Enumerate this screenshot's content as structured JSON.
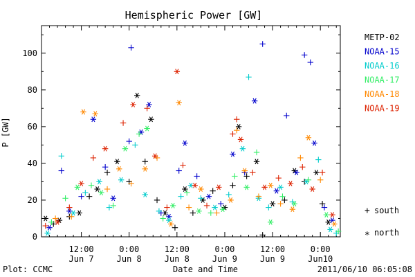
{
  "chart_data": {
    "type": "scatter",
    "title": "Hemispheric Power [GW]",
    "xlabel": "Date and Time",
    "ylabel": "P [GW]",
    "xlim": [
      "2011-06-07T02:00",
      "2011-06-10T05:00"
    ],
    "ylim": [
      0,
      115
    ],
    "yticks": [
      0,
      20,
      40,
      60,
      80,
      100
    ],
    "xtick_labels": [
      {
        "time": "12:00",
        "date": "Jun 7",
        "x": "2011-06-07T12:00"
      },
      {
        "time": "0:00",
        "date": "Jun 8",
        "x": "2011-06-08T00:00"
      },
      {
        "time": "12:00",
        "date": "Jun 8",
        "x": "2011-06-08T12:00"
      },
      {
        "time": "0:00",
        "date": "Jun 9",
        "x": "2011-06-09T00:00"
      },
      {
        "time": "12:00",
        "date": "Jun 9",
        "x": "2011-06-09T12:00"
      },
      {
        "time": "0:00",
        "date": "Jun10",
        "x": "2011-06-10T00:00"
      }
    ],
    "marker_legend": [
      {
        "symbol": "+",
        "label": "south"
      },
      {
        "symbol": "*",
        "label": "north"
      }
    ],
    "grid": false,
    "series": [
      {
        "name": "METP-02",
        "color": "#000000",
        "points": [
          [
            "2011-06-07T03:00",
            10,
            "*"
          ],
          [
            "2011-06-07T05:00",
            7,
            "+"
          ],
          [
            "2011-06-07T06:30",
            9,
            "*"
          ],
          [
            "2011-06-07T09:00",
            11,
            "+"
          ],
          [
            "2011-06-07T11:30",
            13,
            "*"
          ],
          [
            "2011-06-07T14:00",
            22,
            "+"
          ],
          [
            "2011-06-07T16:00",
            26,
            "*"
          ],
          [
            "2011-06-07T18:30",
            35,
            "+"
          ],
          [
            "2011-06-07T21:00",
            41,
            "*"
          ],
          [
            "2011-06-08T00:00",
            30,
            "+"
          ],
          [
            "2011-06-08T02:00",
            77,
            "*"
          ],
          [
            "2011-06-08T04:00",
            41,
            "+"
          ],
          [
            "2011-06-08T05:30",
            64,
            "*"
          ],
          [
            "2011-06-08T07:00",
            20,
            "+"
          ],
          [
            "2011-06-08T09:00",
            13,
            "*"
          ],
          [
            "2011-06-08T11:30",
            5,
            "+"
          ],
          [
            "2011-06-08T14:00",
            26,
            "*"
          ],
          [
            "2011-06-08T16:00",
            13,
            "+"
          ],
          [
            "2011-06-08T18:30",
            20,
            "*"
          ],
          [
            "2011-06-08T21:00",
            25,
            "+"
          ],
          [
            "2011-06-09T00:00",
            16,
            "*"
          ],
          [
            "2011-06-09T02:00",
            28,
            "+"
          ],
          [
            "2011-06-09T03:30",
            60,
            "*"
          ],
          [
            "2011-06-09T05:30",
            33,
            "+"
          ],
          [
            "2011-06-09T08:00",
            41,
            "*"
          ],
          [
            "2011-06-09T09:30",
            1,
            "+"
          ],
          [
            "2011-06-09T12:00",
            18,
            "*"
          ],
          [
            "2011-06-09T15:00",
            20,
            "+"
          ],
          [
            "2011-06-09T17:30",
            36,
            "*"
          ],
          [
            "2011-06-09T20:00",
            30,
            "+"
          ],
          [
            "2011-06-09T23:00",
            35,
            "*"
          ],
          [
            "2011-06-10T00:30",
            18,
            "+"
          ],
          [
            "2011-06-10T02:00",
            8,
            "*"
          ]
        ]
      },
      {
        "name": "NOAA-15",
        "color": "#0000cc",
        "points": [
          [
            "2011-06-07T04:00",
            5,
            "*"
          ],
          [
            "2011-06-07T07:00",
            36,
            "+"
          ],
          [
            "2011-06-07T09:00",
            14,
            "*"
          ],
          [
            "2011-06-07T12:00",
            22,
            "+"
          ],
          [
            "2011-06-07T15:00",
            64,
            "*"
          ],
          [
            "2011-06-07T18:00",
            38,
            "+"
          ],
          [
            "2011-06-07T20:00",
            21,
            "*"
          ],
          [
            "2011-06-08T00:00",
            52,
            "+"
          ],
          [
            "2011-06-08T00:30",
            103,
            "+"
          ],
          [
            "2011-06-08T03:00",
            57,
            "*"
          ],
          [
            "2011-06-08T05:00",
            72,
            "*"
          ],
          [
            "2011-06-08T08:00",
            13,
            "+"
          ],
          [
            "2011-06-08T10:00",
            11,
            "*"
          ],
          [
            "2011-06-08T12:30",
            36,
            "+"
          ],
          [
            "2011-06-08T14:00",
            51,
            "*"
          ],
          [
            "2011-06-08T17:00",
            33,
            "+"
          ],
          [
            "2011-06-08T20:00",
            22,
            "*"
          ],
          [
            "2011-06-08T23:00",
            18,
            "+"
          ],
          [
            "2011-06-09T02:00",
            45,
            "*"
          ],
          [
            "2011-06-09T05:00",
            35,
            "+"
          ],
          [
            "2011-06-09T07:30",
            74,
            "*"
          ],
          [
            "2011-06-09T09:30",
            105,
            "+"
          ],
          [
            "2011-06-09T13:00",
            25,
            "*"
          ],
          [
            "2011-06-09T15:30",
            66,
            "+"
          ],
          [
            "2011-06-09T18:00",
            35,
            "*"
          ],
          [
            "2011-06-09T20:00",
            99,
            "+"
          ],
          [
            "2011-06-09T21:30",
            95,
            "+"
          ],
          [
            "2011-06-09T22:30",
            51,
            "*"
          ],
          [
            "2011-06-10T01:00",
            16,
            "+"
          ],
          [
            "2011-06-10T03:00",
            9,
            "*"
          ]
        ]
      },
      {
        "name": "NOAA-16",
        "color": "#00cccc",
        "points": [
          [
            "2011-06-07T03:30",
            2,
            "*"
          ],
          [
            "2011-06-07T07:00",
            44,
            "+"
          ],
          [
            "2011-06-07T10:00",
            13,
            "*"
          ],
          [
            "2011-06-07T13:00",
            24,
            "+"
          ],
          [
            "2011-06-07T16:30",
            30,
            "*"
          ],
          [
            "2011-06-07T19:00",
            16,
            "+"
          ],
          [
            "2011-06-07T22:00",
            31,
            "*"
          ],
          [
            "2011-06-08T01:30",
            50,
            "+"
          ],
          [
            "2011-06-08T04:00",
            23,
            "*"
          ],
          [
            "2011-06-08T07:30",
            14,
            "+"
          ],
          [
            "2011-06-08T10:00",
            9,
            "*"
          ],
          [
            "2011-06-08T13:00",
            22,
            "+"
          ],
          [
            "2011-06-08T15:30",
            28,
            "*"
          ],
          [
            "2011-06-08T18:00",
            21,
            "+"
          ],
          [
            "2011-06-08T21:30",
            16,
            "*"
          ],
          [
            "2011-06-09T01:00",
            23,
            "+"
          ],
          [
            "2011-06-09T04:30",
            48,
            "*"
          ],
          [
            "2011-06-09T06:00",
            87,
            "+"
          ],
          [
            "2011-06-09T08:30",
            21,
            "*"
          ],
          [
            "2011-06-09T11:00",
            16,
            "+"
          ],
          [
            "2011-06-09T14:00",
            27,
            "*"
          ],
          [
            "2011-06-09T17:00",
            19,
            "+"
          ],
          [
            "2011-06-09T20:30",
            30,
            "*"
          ],
          [
            "2011-06-09T23:30",
            42,
            "+"
          ],
          [
            "2011-06-10T02:30",
            4,
            "*"
          ],
          [
            "2011-06-10T04:00",
            2,
            "+"
          ]
        ]
      },
      {
        "name": "NOAA-17",
        "color": "#33ee66",
        "points": [
          [
            "2011-06-07T04:30",
            8,
            "+"
          ],
          [
            "2011-06-07T08:00",
            21,
            "+"
          ],
          [
            "2011-06-07T11:00",
            27,
            "*"
          ],
          [
            "2011-06-07T14:30",
            28,
            "+"
          ],
          [
            "2011-06-07T17:00",
            24,
            "*"
          ],
          [
            "2011-06-07T20:00",
            17,
            "+"
          ],
          [
            "2011-06-07T23:00",
            48,
            "*"
          ],
          [
            "2011-06-08T02:30",
            56,
            "+"
          ],
          [
            "2011-06-08T04:30",
            59,
            "*"
          ],
          [
            "2011-06-08T08:30",
            10,
            "+"
          ],
          [
            "2011-06-08T11:00",
            17,
            "*"
          ],
          [
            "2011-06-08T14:30",
            24,
            "+"
          ],
          [
            "2011-06-08T17:30",
            14,
            "*"
          ],
          [
            "2011-06-08T20:30",
            13,
            "+"
          ],
          [
            "2011-06-08T23:30",
            15,
            "*"
          ],
          [
            "2011-06-09T02:30",
            33,
            "+"
          ],
          [
            "2011-06-09T05:30",
            27,
            "*"
          ],
          [
            "2011-06-09T08:00",
            46,
            "+"
          ],
          [
            "2011-06-09T11:30",
            8,
            "*"
          ],
          [
            "2011-06-09T14:30",
            22,
            "+"
          ],
          [
            "2011-06-09T17:30",
            18,
            "*"
          ],
          [
            "2011-06-09T21:00",
            31,
            "+"
          ],
          [
            "2011-06-10T01:30",
            12,
            "*"
          ],
          [
            "2011-06-10T04:30",
            3,
            "+"
          ]
        ]
      },
      {
        "name": "NOAA-18",
        "color": "#ff8800",
        "points": [
          [
            "2011-06-07T05:30",
            10,
            "+"
          ],
          [
            "2011-06-07T09:30",
            11,
            "+"
          ],
          [
            "2011-06-07T12:30",
            68,
            "*"
          ],
          [
            "2011-06-07T15:30",
            67,
            "*"
          ],
          [
            "2011-06-07T18:30",
            26,
            "+"
          ],
          [
            "2011-06-07T21:30",
            37,
            "*"
          ],
          [
            "2011-06-08T00:30",
            29,
            "+"
          ],
          [
            "2011-06-08T04:00",
            37,
            "*"
          ],
          [
            "2011-06-08T07:00",
            43,
            "+"
          ],
          [
            "2011-06-08T10:30",
            7,
            "*"
          ],
          [
            "2011-06-08T12:30",
            73,
            "*"
          ],
          [
            "2011-06-08T15:00",
            16,
            "+"
          ],
          [
            "2011-06-08T18:00",
            26,
            "*"
          ],
          [
            "2011-06-08T22:00",
            13,
            "+"
          ],
          [
            "2011-06-09T01:30",
            20,
            "*"
          ],
          [
            "2011-06-09T03:00",
            58,
            "+"
          ],
          [
            "2011-06-09T05:00",
            36,
            "*"
          ],
          [
            "2011-06-09T08:30",
            22,
            "+"
          ],
          [
            "2011-06-09T11:30",
            28,
            "*"
          ],
          [
            "2011-06-09T14:00",
            18,
            "+"
          ],
          [
            "2011-06-09T17:00",
            15,
            "*"
          ],
          [
            "2011-06-09T19:00",
            43,
            "+"
          ],
          [
            "2011-06-09T21:00",
            54,
            "*"
          ],
          [
            "2011-06-10T00:00",
            31,
            "+"
          ],
          [
            "2011-06-10T03:30",
            7,
            "*"
          ]
        ]
      },
      {
        "name": "NOAA-19",
        "color": "#dd2200",
        "points": [
          [
            "2011-06-07T03:00",
            6,
            "+"
          ],
          [
            "2011-06-07T06:00",
            8,
            "*"
          ],
          [
            "2011-06-07T09:00",
            16,
            "+"
          ],
          [
            "2011-06-07T12:00",
            29,
            "*"
          ],
          [
            "2011-06-07T15:00",
            43,
            "+"
          ],
          [
            "2011-06-07T18:00",
            48,
            "*"
          ],
          [
            "2011-06-07T22:30",
            62,
            "+"
          ],
          [
            "2011-06-08T01:00",
            72,
            "*"
          ],
          [
            "2011-06-08T04:30",
            70,
            "+"
          ],
          [
            "2011-06-08T06:30",
            44,
            "*"
          ],
          [
            "2011-06-08T09:30",
            16,
            "+"
          ],
          [
            "2011-06-08T12:00",
            90,
            "*"
          ],
          [
            "2011-06-08T13:30",
            39,
            "+"
          ],
          [
            "2011-06-08T16:30",
            28,
            "*"
          ],
          [
            "2011-06-08T19:30",
            17,
            "+"
          ],
          [
            "2011-06-08T22:30",
            27,
            "*"
          ],
          [
            "2011-06-09T02:00",
            56,
            "+"
          ],
          [
            "2011-06-09T03:00",
            64,
            "+"
          ],
          [
            "2011-06-09T04:00",
            53,
            "*"
          ],
          [
            "2011-06-09T07:00",
            35,
            "+"
          ],
          [
            "2011-06-09T10:00",
            27,
            "*"
          ],
          [
            "2011-06-09T13:30",
            32,
            "+"
          ],
          [
            "2011-06-09T16:30",
            29,
            "*"
          ],
          [
            "2011-06-09T19:30",
            38,
            "+"
          ],
          [
            "2011-06-09T22:00",
            26,
            "*"
          ],
          [
            "2011-06-10T00:30",
            35,
            "+"
          ],
          [
            "2011-06-10T03:00",
            12,
            "*"
          ]
        ]
      }
    ]
  },
  "footer": {
    "left": "Plot: CCMC",
    "right": "2011/06/10 06:05:08"
  }
}
